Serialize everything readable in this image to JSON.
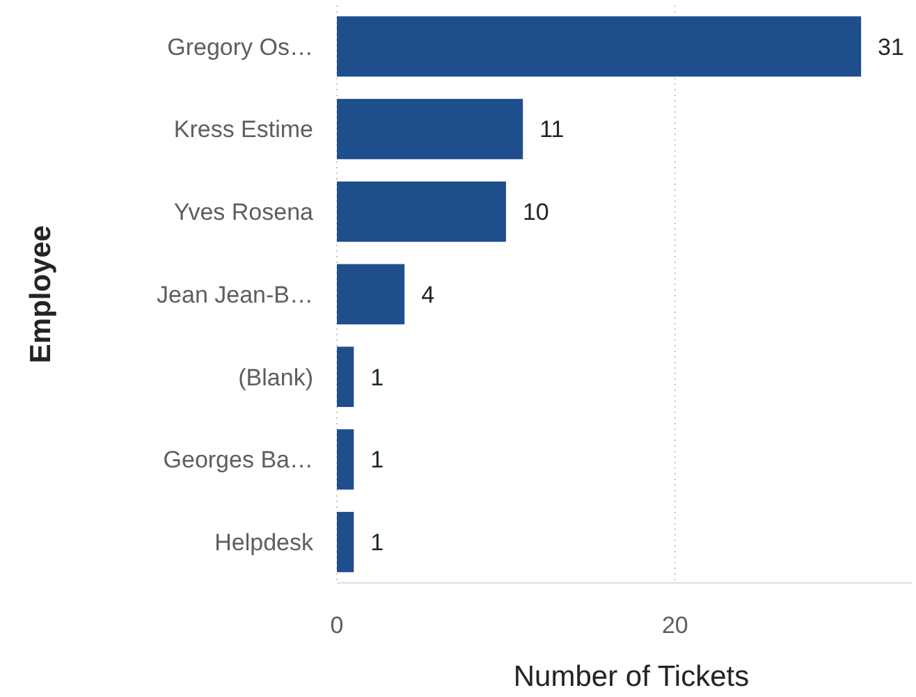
{
  "chart_data": {
    "type": "bar",
    "orientation": "horizontal",
    "xlabel": "Number of Tickets",
    "ylabel": "Employee",
    "categories": [
      "Gregory Os…",
      "Kress Estime",
      "Yves Rosena",
      "Jean Jean-B…",
      "(Blank)",
      "Georges Ba…",
      "Helpdesk"
    ],
    "values": [
      31,
      11,
      10,
      4,
      1,
      1,
      1
    ],
    "color": "#1f4e8c",
    "xlim": [
      0,
      34
    ],
    "xticks": [
      0,
      20
    ],
    "grid": "x",
    "data_labels": true
  }
}
